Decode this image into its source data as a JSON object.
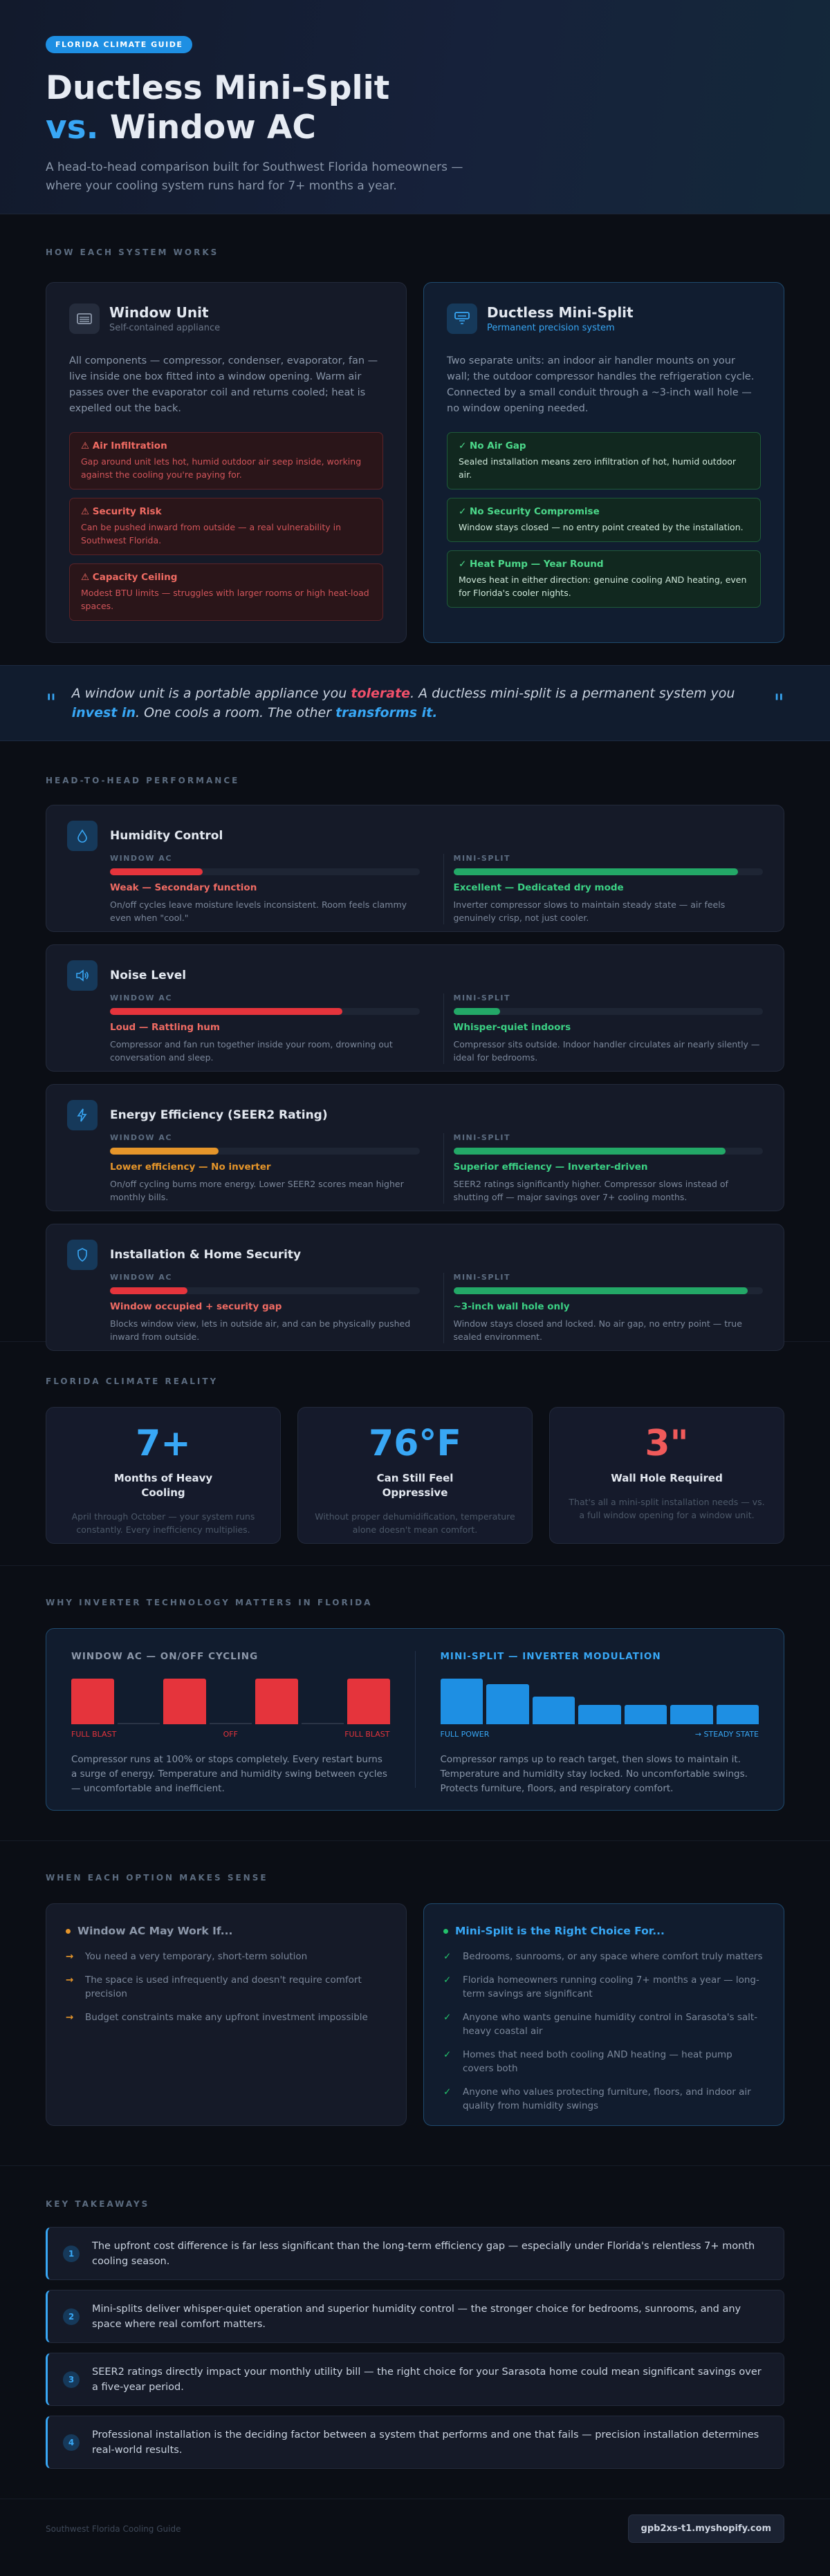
{
  "hero": {
    "badge": "FLORIDA CLIMATE GUIDE",
    "title_line1": "Ductless Mini-Split",
    "title_vs": "vs.",
    "title_line2": "Window AC",
    "subtitle": "A head-to-head comparison built for Southwest Florida homeowners — where your cooling system runs hard for 7+ months a year."
  },
  "how": {
    "eyebrow": "HOW EACH SYSTEM WORKS",
    "window": {
      "icon": "window-unit-icon",
      "title": "Window Unit",
      "subtitle": "Self-contained appliance",
      "description": "All components — compressor, condenser, evaporator, fan — live inside one box fitted into a window opening. Warm air passes over the evaporator coil and returns cooled; heat is expelled out the back.",
      "issues": [
        {
          "title": "⚠ Air Infiltration",
          "text": "Gap around unit lets hot, humid outdoor air seep inside, working against the cooling you're paying for."
        },
        {
          "title": "⚠ Security Risk",
          "text": "Can be pushed inward from outside — a real vulnerability in Southwest Florida."
        },
        {
          "title": "⚠ Capacity Ceiling",
          "text": "Modest BTU limits — struggles with larger rooms or high heat-load spaces."
        }
      ]
    },
    "split": {
      "icon": "mini-split-icon",
      "title": "Ductless Mini-Split",
      "subtitle": "Permanent precision system",
      "description": "Two separate units: an indoor air handler mounts on your wall; the outdoor compressor handles the refrigeration cycle. Connected by a small conduit through a ~3-inch wall hole — no window opening needed.",
      "benefits": [
        {
          "title": "✓ No Air Gap",
          "text": "Sealed installation means zero infiltration of hot, humid outdoor air."
        },
        {
          "title": "✓ No Security Compromise",
          "text": "Window stays closed — no entry point created by the installation."
        },
        {
          "title": "✓ Heat Pump — Year Round",
          "text": "Moves heat in either direction: genuine cooling AND heating, even for Florida's cooler nights."
        }
      ]
    }
  },
  "quote": {
    "open": "\"",
    "close": "\"",
    "p1": "A window unit is a portable appliance you ",
    "p2": "tolerate",
    "p3": ". A ductless mini-split is a permanent system you ",
    "p4": "invest in",
    "p5": ". One cools a room. The other ",
    "p6": "transforms it."
  },
  "perf": {
    "eyebrow": "HEAD-TO-HEAD PERFORMANCE",
    "left_label": "WINDOW AC",
    "right_label": "MINI-SPLIT",
    "rows": [
      {
        "icon": "droplet-icon",
        "title": "Humidity Control",
        "window_verdict": "Weak — Secondary function",
        "window_note": "On/off cycles leave moisture levels inconsistent. Room feels clammy even when \"cool.\"",
        "window_level": 0.3,
        "window_color": "#e5343c",
        "split_verdict": "Excellent — Dedicated dry mode",
        "split_note": "Inverter compressor slows to maintain steady state — air feels genuinely crisp, not just cooler.",
        "split_level": 0.92,
        "split_color": "#23a867"
      },
      {
        "icon": "speaker-icon",
        "title": "Noise Level",
        "window_verdict": "Loud — Rattling hum",
        "window_note": "Compressor and fan run together inside your room, drowning out conversation and sleep.",
        "window_level": 0.75,
        "window_color": "#e5343c",
        "split_verdict": "Whisper-quiet indoors",
        "split_note": "Compressor sits outside. Indoor handler circulates air nearly silently — ideal for bedrooms.",
        "split_level": 0.15,
        "split_color": "#23a867"
      },
      {
        "icon": "bolt-icon",
        "title": "Energy Efficiency (SEER2 Rating)",
        "window_verdict": "Lower efficiency — No inverter",
        "window_note": "On/off cycling burns more energy. Lower SEER2 scores mean higher monthly bills.",
        "window_level": 0.35,
        "window_color": "#e5952a",
        "split_verdict": "Superior efficiency — Inverter-driven",
        "split_note": "SEER2 ratings significantly higher. Compressor slows instead of shutting off — major savings over 7+ cooling months.",
        "split_level": 0.88,
        "split_color": "#23a867"
      },
      {
        "icon": "shield-icon",
        "title": "Installation & Home Security",
        "window_verdict": "Window occupied + security gap",
        "window_note": "Blocks window view, lets in outside air, and can be physically pushed inward from outside.",
        "window_level": 0.25,
        "window_color": "#e5343c",
        "split_verdict": "~3-inch wall hole only",
        "split_note": "Window stays closed and locked. No air gap, no entry point — true sealed environment.",
        "split_level": 0.95,
        "split_color": "#23a867"
      }
    ]
  },
  "climate": {
    "eyebrow": "FLORIDA CLIMATE REALITY",
    "stats": [
      {
        "value": "7+",
        "color": "#38a7f5",
        "label": "Months of Heavy Cooling",
        "note": "April through October — your system runs constantly. Every inefficiency multiplies."
      },
      {
        "value": "76°F",
        "color": "#38a7f5",
        "label": "Can Still Feel Oppressive",
        "note": "Without proper dehumidification, temperature alone doesn't mean comfort."
      },
      {
        "value": "3\"",
        "color": "#f05a5a",
        "label": "Wall Hole Required",
        "note": "That's all a mini-split installation needs — vs. a full window opening for a window unit."
      }
    ]
  },
  "inverter": {
    "eyebrow": "WHY INVERTER TECHNOLOGY MATTERS IN FLORIDA",
    "window": {
      "title": "WINDOW AC — ON/OFF CYCLING",
      "bars": [
        1,
        0,
        1,
        0,
        1,
        0,
        1
      ],
      "labels": [
        "FULL BLAST",
        "OFF",
        "FULL BLAST"
      ],
      "text": "Compressor runs at 100% or stops completely. Every restart burns a surge of energy. Temperature and humidity swing between cycles — uncomfortable and inefficient."
    },
    "split": {
      "title": "MINI-SPLIT — INVERTER MODULATION",
      "bars": [
        1,
        0.88,
        0.6,
        0.42,
        0.42,
        0.42,
        0.42
      ],
      "labels": [
        "FULL POWER",
        "→ STEADY STATE"
      ],
      "text": "Compressor ramps up to reach target, then slows to maintain it. Temperature and humidity stay locked. No uncomfortable swings. Protects furniture, floors, and respiratory comfort."
    }
  },
  "when": {
    "eyebrow": "WHEN EACH OPTION MAKES SENSE",
    "window": {
      "title": "Window AC May Work If...",
      "items": [
        "You need a very temporary, short-term solution",
        "The space is used infrequently and doesn't require comfort precision",
        "Budget constraints make any upfront investment impossible"
      ]
    },
    "split": {
      "title": "Mini-Split is the Right Choice For...",
      "items": [
        "Bedrooms, sunrooms, or any space where comfort truly matters",
        "Florida homeowners running cooling 7+ months a year — long-term savings are significant",
        "Anyone who wants genuine humidity control in Sarasota's salt-heavy coastal air",
        "Homes that need both cooling AND heating — heat pump covers both",
        "Anyone who values protecting furniture, floors, and indoor air quality from humidity swings"
      ]
    }
  },
  "takeaways": {
    "eyebrow": "KEY TAKEAWAYS",
    "items": [
      {
        "num": "1",
        "text": "The upfront cost difference is far less significant than the long-term efficiency gap — especially under Florida's relentless 7+ month cooling season."
      },
      {
        "num": "2",
        "text": "Mini-splits deliver whisper-quiet operation and superior humidity control — the stronger choice for bedrooms, sunrooms, and any space where real comfort matters."
      },
      {
        "num": "3",
        "text": "SEER2 ratings directly impact your monthly utility bill — the right choice for your Sarasota home could mean significant savings over a five-year period."
      },
      {
        "num": "4",
        "text": "Professional installation is the deciding factor between a system that performs and one that fails — precision installation determines real-world results."
      }
    ]
  },
  "footer": {
    "left": "Southwest Florida Cooling Guide",
    "right": "gpb2xs-t1.myshopify.com"
  }
}
